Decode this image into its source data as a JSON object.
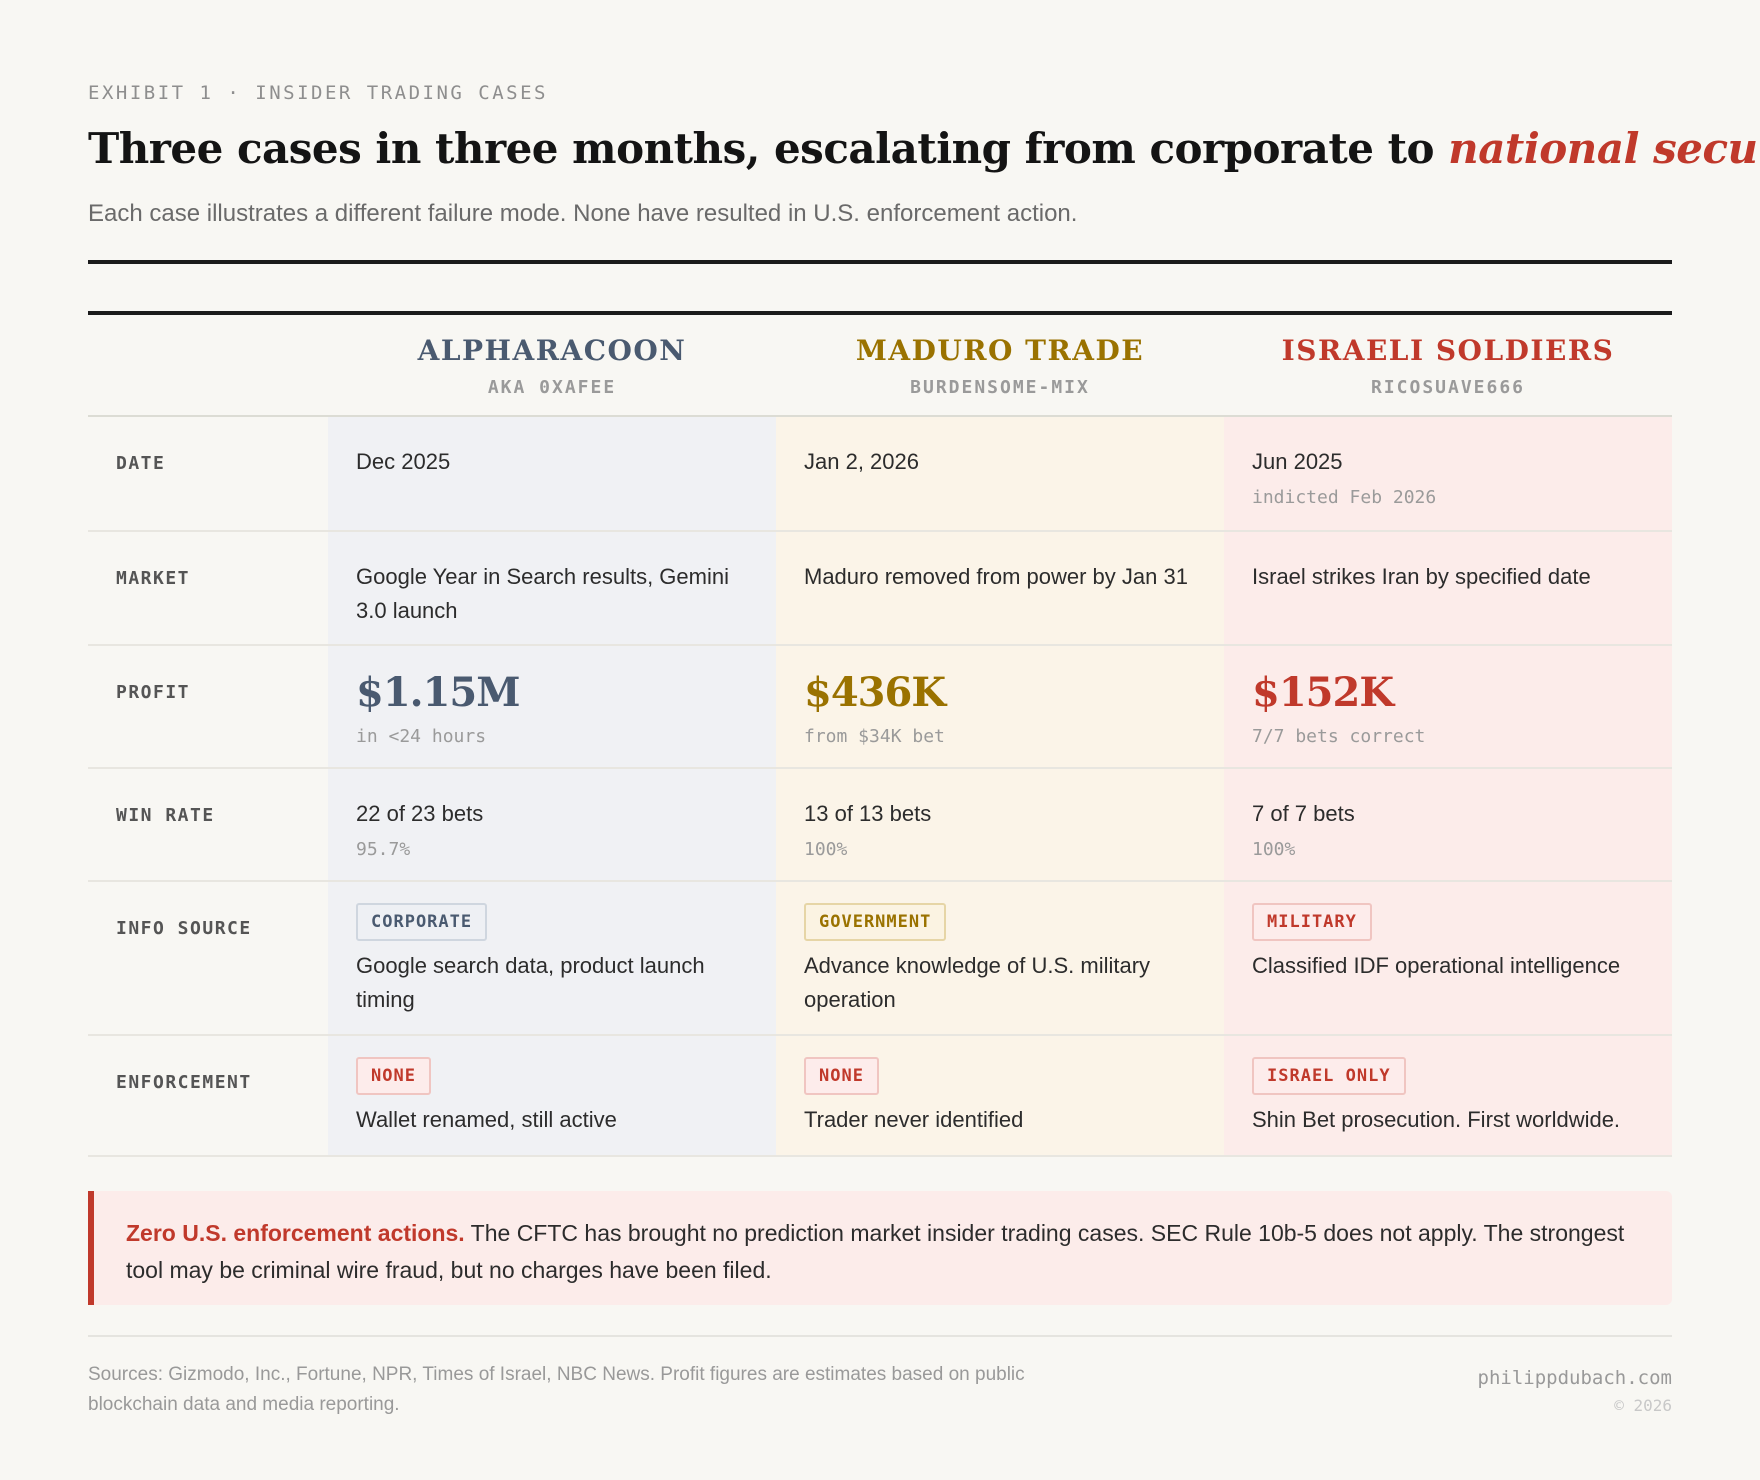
{
  "header": {
    "eyebrow": "EXHIBIT 1 · INSIDER TRADING CASES",
    "title_main": "Three cases in three months, escalating from corporate to ",
    "title_emphasis": "national security",
    "subtitle": "Each case illustrates a different failure mode. None have resulted in U.S. enforcement action."
  },
  "colors": {
    "slate": "#4a5a70",
    "gold": "#9a7200",
    "red": "#c0392b"
  },
  "table": {
    "cases": [
      {
        "name": "ALPHARACOON",
        "handle": "AKA 0XAFEE"
      },
      {
        "name": "MADURO TRADE",
        "handle": "BURDENSOME-MIX"
      },
      {
        "name": "ISRAELI SOLDIERS",
        "handle": "RICOSUAVE666"
      }
    ],
    "rows": {
      "date": {
        "label": "DATE",
        "values": [
          {
            "main": "Dec 2025",
            "sub": ""
          },
          {
            "main": "Jan 2, 2026",
            "sub": ""
          },
          {
            "main": "Jun 2025",
            "sub": "indicted Feb 2026"
          }
        ]
      },
      "market": {
        "label": "MARKET",
        "values": [
          "Google Year in Search results, Gemini 3.0 launch",
          "Maduro removed from power by Jan 31",
          "Israel strikes Iran by specified date"
        ]
      },
      "profit": {
        "label": "PROFIT",
        "values": [
          {
            "main": "$1.15M",
            "sub": "in <24 hours"
          },
          {
            "main": "$436K",
            "sub": "from $34K bet"
          },
          {
            "main": "$152K",
            "sub": "7/7 bets correct"
          }
        ]
      },
      "win_rate": {
        "label": "WIN RATE",
        "values": [
          {
            "main": "22 of 23 bets",
            "sub": "95.7%"
          },
          {
            "main": "13 of 13 bets",
            "sub": "100%"
          },
          {
            "main": "7 of 7 bets",
            "sub": "100%"
          }
        ]
      },
      "info_source": {
        "label": "INFO SOURCE",
        "values": [
          {
            "badge": "CORPORATE",
            "text": "Google search data, product launch timing"
          },
          {
            "badge": "GOVERNMENT",
            "text": "Advance knowledge of U.S. military operation"
          },
          {
            "badge": "MILITARY",
            "text": "Classified IDF operational intelligence"
          }
        ]
      },
      "enforcement": {
        "label": "ENFORCEMENT",
        "values": [
          {
            "badge": "NONE",
            "text": "Wallet renamed, still active"
          },
          {
            "badge": "NONE",
            "text": "Trader never identified"
          },
          {
            "badge": "ISRAEL ONLY",
            "text": "Shin Bet prosecution. First worldwide."
          }
        ]
      }
    }
  },
  "callout": {
    "lead": "Zero U.S. enforcement actions.",
    "text": " The CFTC has brought no prediction market insider trading cases. SEC Rule 10b-5 does not apply. The strongest tool may be criminal wire fraud, but no charges have been filed."
  },
  "footer": {
    "sources": "Sources: Gizmodo, Inc., Fortune, NPR, Times of Israel, NBC News. Profit figures are estimates based on public blockchain data and media reporting.",
    "site": "philippdubach.com",
    "copyright": "© 2026"
  }
}
